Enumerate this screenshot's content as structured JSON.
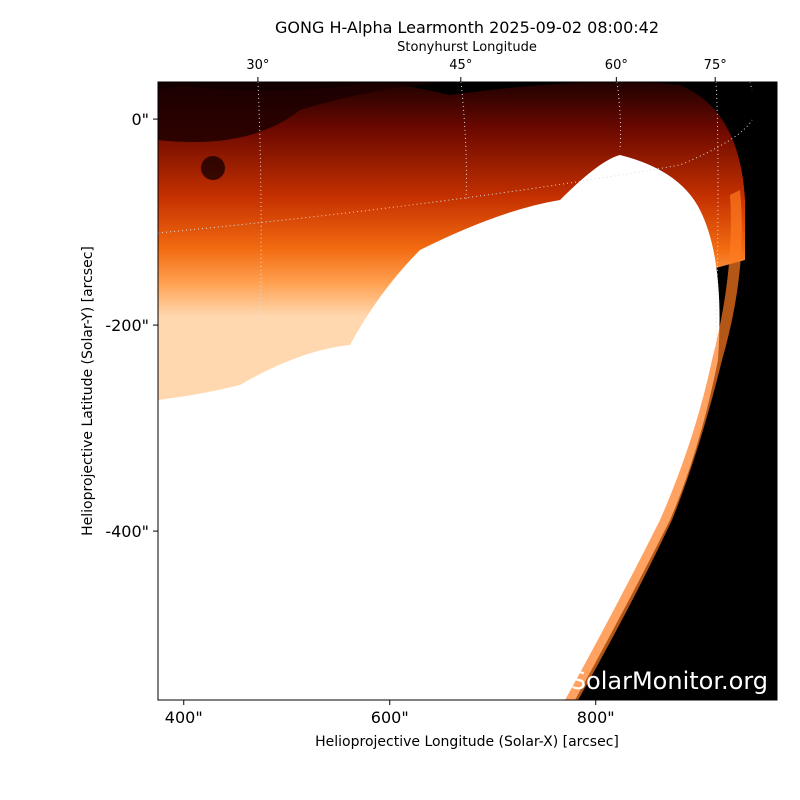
{
  "chart_data": {
    "type": "image",
    "title": "GONG H-Alpha Learmonth 2025-09-02 08:00:42",
    "xlabel": "Helioprojective Longitude (Solar-X) [arcsec]",
    "ylabel": "Helioprojective Latitude (Solar-Y) [arcsec]",
    "x2label": "Stonyhurst Longitude",
    "watermark": "SolarMonitor.org",
    "xlim": [
      375,
      976
    ],
    "ylim": [
      -564,
      36
    ],
    "xticks": [
      {
        "value": 400,
        "label": "400\""
      },
      {
        "value": 600,
        "label": "600\""
      },
      {
        "value": 800,
        "label": "800\""
      }
    ],
    "yticks": [
      {
        "value": 0,
        "label": "0\""
      },
      {
        "value": -200,
        "label": "-200\""
      },
      {
        "value": -400,
        "label": "-400\""
      }
    ],
    "x2ticks": [
      {
        "value": 472,
        "label": "30°"
      },
      {
        "value": 669,
        "label": "45°"
      },
      {
        "value": 820,
        "label": "60°"
      },
      {
        "value": 916,
        "label": "75°"
      }
    ]
  }
}
